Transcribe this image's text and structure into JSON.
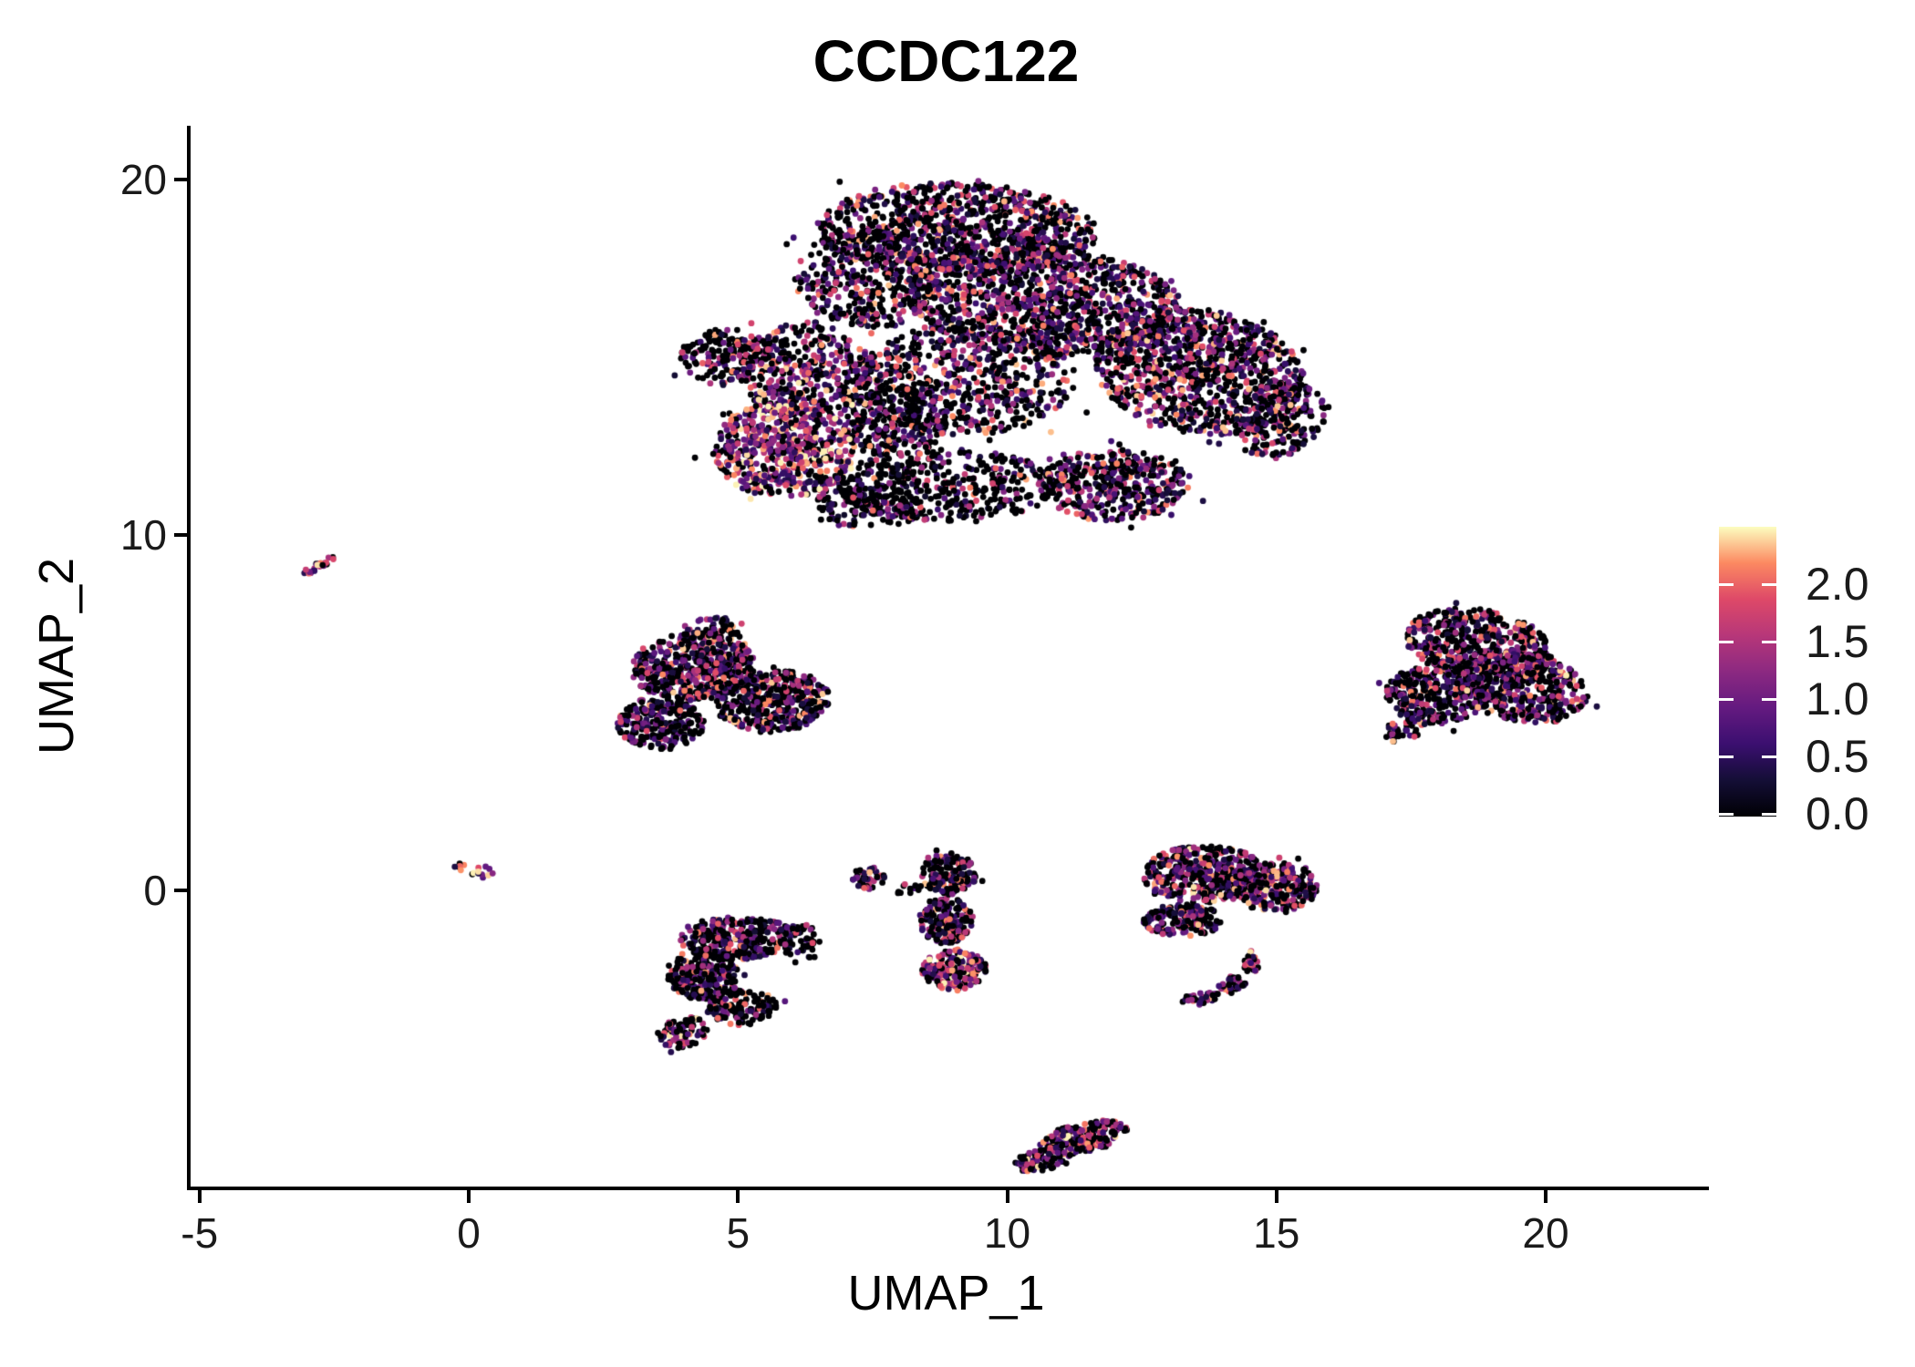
{
  "title": "CCDC122",
  "axes": {
    "x": {
      "label": "UMAP_1",
      "ticks": [
        "-5",
        "0",
        "5",
        "10",
        "15",
        "20"
      ],
      "tick_values": [
        -5,
        0,
        5,
        10,
        15,
        20
      ],
      "range": [
        -5.23,
        22.96
      ]
    },
    "y": {
      "label": "UMAP_2",
      "ticks": [
        "0",
        "10",
        "20"
      ],
      "tick_values": [
        0,
        10,
        20
      ],
      "range": [
        -8.33,
        21.51
      ]
    }
  },
  "legend": {
    "colormap": "magma",
    "min": 0.0,
    "max": 2.48,
    "tick_labels": [
      "2.0",
      "1.5",
      "1.0",
      "0.5",
      "0.0"
    ],
    "tick_values": [
      2.0,
      1.5,
      1.0,
      0.5,
      0.0
    ],
    "stops": [
      [
        0.0,
        "#000004"
      ],
      [
        0.125,
        "#140e36"
      ],
      [
        0.25,
        "#3b0f70"
      ],
      [
        0.375,
        "#641a80"
      ],
      [
        0.5,
        "#8c2981"
      ],
      [
        0.625,
        "#b73779"
      ],
      [
        0.75,
        "#de4968"
      ],
      [
        0.875,
        "#fc8961"
      ],
      [
        1.0,
        "#fcfdbf"
      ]
    ]
  },
  "chart_data": {
    "type": "scatter",
    "title": "CCDC122",
    "xlabel": "UMAP_1",
    "ylabel": "UMAP_2",
    "xlim": [
      -5.23,
      22.96
    ],
    "ylim": [
      -8.33,
      21.51
    ],
    "x_ticks": [
      -5,
      0,
      5,
      10,
      15,
      20
    ],
    "y_ticks": [
      0,
      10,
      20
    ],
    "grid": false,
    "legend_position": "right",
    "point_radius_px": 3.4,
    "color_scale": {
      "name": "magma",
      "min": 0.0,
      "max": 2.48,
      "legend_ticks": [
        0.0,
        0.5,
        1.0,
        1.5,
        2.0
      ]
    },
    "clusters": [
      {
        "name": "main-upper-blob",
        "x_range": [
          3.8,
          15.9
        ],
        "y_range": [
          10.2,
          21.3
        ],
        "blobs": [
          [
            9.0,
            18.6,
            2.6,
            1.3,
            -3,
            950,
            0.52,
            0.45
          ],
          [
            10.6,
            16.6,
            2.6,
            1.5,
            -8,
            1100,
            0.55,
            0.5
          ],
          [
            13.5,
            14.6,
            2.0,
            1.7,
            -30,
            1000,
            0.55,
            0.5
          ],
          [
            9.2,
            14.4,
            2.0,
            1.6,
            0,
            600,
            0.5,
            0.45
          ],
          [
            5.8,
            12.4,
            1.35,
            1.35,
            0,
            600,
            0.75,
            0.8
          ],
          [
            6.2,
            14.6,
            1.2,
            1.4,
            0,
            420,
            0.6,
            0.6
          ],
          [
            4.7,
            15.0,
            0.85,
            0.8,
            0,
            160,
            0.45,
            0.4
          ],
          [
            8.8,
            11.4,
            2.1,
            1.0,
            0,
            420,
            0.32,
            0.35
          ],
          [
            11.9,
            11.4,
            1.4,
            1.0,
            0,
            430,
            0.55,
            0.5
          ],
          [
            7.3,
            17.2,
            1.3,
            1.4,
            20,
            380,
            0.5,
            0.5
          ],
          [
            15.0,
            13.2,
            0.8,
            1.1,
            -20,
            220,
            0.5,
            0.5
          ],
          [
            7.3,
            10.8,
            1.1,
            0.6,
            0,
            150,
            0.3,
            0.3
          ],
          [
            7.8,
            13.2,
            1.0,
            1.0,
            0,
            260,
            0.45,
            0.55
          ]
        ]
      },
      {
        "name": "far-left-streak",
        "x_range": [
          -3.2,
          -2.5
        ],
        "y_range": [
          8.8,
          9.5
        ],
        "blobs": [
          [
            -2.85,
            9.15,
            0.42,
            0.09,
            40,
            26,
            0.75,
            0.7
          ]
        ]
      },
      {
        "name": "mid-left-blob",
        "x_range": [
          2.4,
          6.8
        ],
        "y_range": [
          3.3,
          7.7
        ],
        "blobs": [
          [
            4.1,
            6.3,
            1.15,
            0.95,
            10,
            520,
            0.55,
            0.55
          ],
          [
            5.6,
            5.3,
            1.05,
            0.85,
            20,
            430,
            0.5,
            0.5
          ],
          [
            3.5,
            4.7,
            0.8,
            0.75,
            0,
            260,
            0.5,
            0.5
          ],
          [
            4.5,
            7.4,
            0.55,
            0.3,
            0,
            50,
            0.5,
            0.5
          ]
        ]
      },
      {
        "name": "right-blob",
        "x_range": [
          16.9,
          20.9
        ],
        "y_range": [
          4.0,
          8.4
        ],
        "blobs": [
          [
            18.7,
            6.9,
            1.4,
            1.0,
            -20,
            520,
            0.5,
            0.5
          ],
          [
            19.5,
            5.7,
            1.25,
            0.95,
            -20,
            430,
            0.55,
            0.6
          ],
          [
            17.9,
            5.5,
            0.95,
            0.85,
            0,
            300,
            0.45,
            0.45
          ],
          [
            17.3,
            4.5,
            0.4,
            0.3,
            35,
            30,
            0.5,
            0.5
          ]
        ]
      },
      {
        "name": "tiny-origin-cluster",
        "x_range": [
          -0.35,
          0.6
        ],
        "y_range": [
          0.2,
          0.9
        ],
        "blobs": [
          [
            0.1,
            0.55,
            0.45,
            0.18,
            -18,
            17,
            0.75,
            0.7
          ]
        ]
      },
      {
        "name": "lower-left-blob",
        "x_range": [
          3.3,
          6.4
        ],
        "y_range": [
          -4.6,
          -0.7
        ],
        "blobs": [
          [
            4.9,
            -1.35,
            1.05,
            0.6,
            5,
            300,
            0.45,
            0.5
          ],
          [
            4.3,
            -2.4,
            0.7,
            0.65,
            -25,
            210,
            0.4,
            0.45
          ],
          [
            5.0,
            -3.3,
            0.65,
            0.5,
            10,
            130,
            0.35,
            0.4
          ],
          [
            3.9,
            -4.0,
            0.5,
            0.4,
            35,
            90,
            0.5,
            0.6
          ],
          [
            6.1,
            -1.5,
            0.35,
            0.55,
            0,
            50,
            0.3,
            0.3
          ]
        ]
      },
      {
        "name": "mid-column-blob",
        "x_range": [
          7.0,
          9.7
        ],
        "y_range": [
          -3.1,
          1.2
        ],
        "blobs": [
          [
            8.85,
            0.45,
            0.5,
            0.6,
            0,
            150,
            0.4,
            0.45
          ],
          [
            8.8,
            -0.85,
            0.5,
            0.65,
            0,
            170,
            0.45,
            0.5
          ],
          [
            8.95,
            -2.25,
            0.6,
            0.6,
            0,
            190,
            0.7,
            0.75
          ],
          [
            7.35,
            0.35,
            0.3,
            0.32,
            0,
            45,
            0.55,
            0.55
          ],
          [
            8.0,
            0.05,
            0.3,
            0.15,
            0,
            10,
            0.25,
            0.3
          ]
        ]
      },
      {
        "name": "lower-right-blob-with-hook",
        "x_range": [
          12.4,
          15.9
        ],
        "y_range": [
          -3.3,
          1.6
        ],
        "blobs": [
          [
            13.6,
            0.45,
            1.15,
            0.8,
            0,
            430,
            0.55,
            0.6
          ],
          [
            14.9,
            0.1,
            0.8,
            0.7,
            0,
            270,
            0.5,
            0.55
          ],
          [
            13.2,
            -0.85,
            0.75,
            0.45,
            0,
            160,
            0.5,
            0.5
          ],
          [
            14.45,
            -2.0,
            0.16,
            0.35,
            0,
            28,
            0.55,
            0.6
          ],
          [
            14.1,
            -2.65,
            0.3,
            0.22,
            35,
            30,
            0.6,
            0.65
          ],
          [
            13.55,
            -3.05,
            0.4,
            0.16,
            10,
            32,
            0.6,
            0.6
          ]
        ]
      },
      {
        "name": "bottom-streak-blob",
        "x_range": [
          10.0,
          12.3
        ],
        "y_range": [
          -8.3,
          -6.3
        ],
        "blobs": [
          [
            11.35,
            -6.95,
            0.85,
            0.4,
            20,
            210,
            0.6,
            0.65
          ],
          [
            10.55,
            -7.6,
            0.5,
            0.28,
            18,
            90,
            0.55,
            0.6
          ]
        ]
      }
    ]
  }
}
